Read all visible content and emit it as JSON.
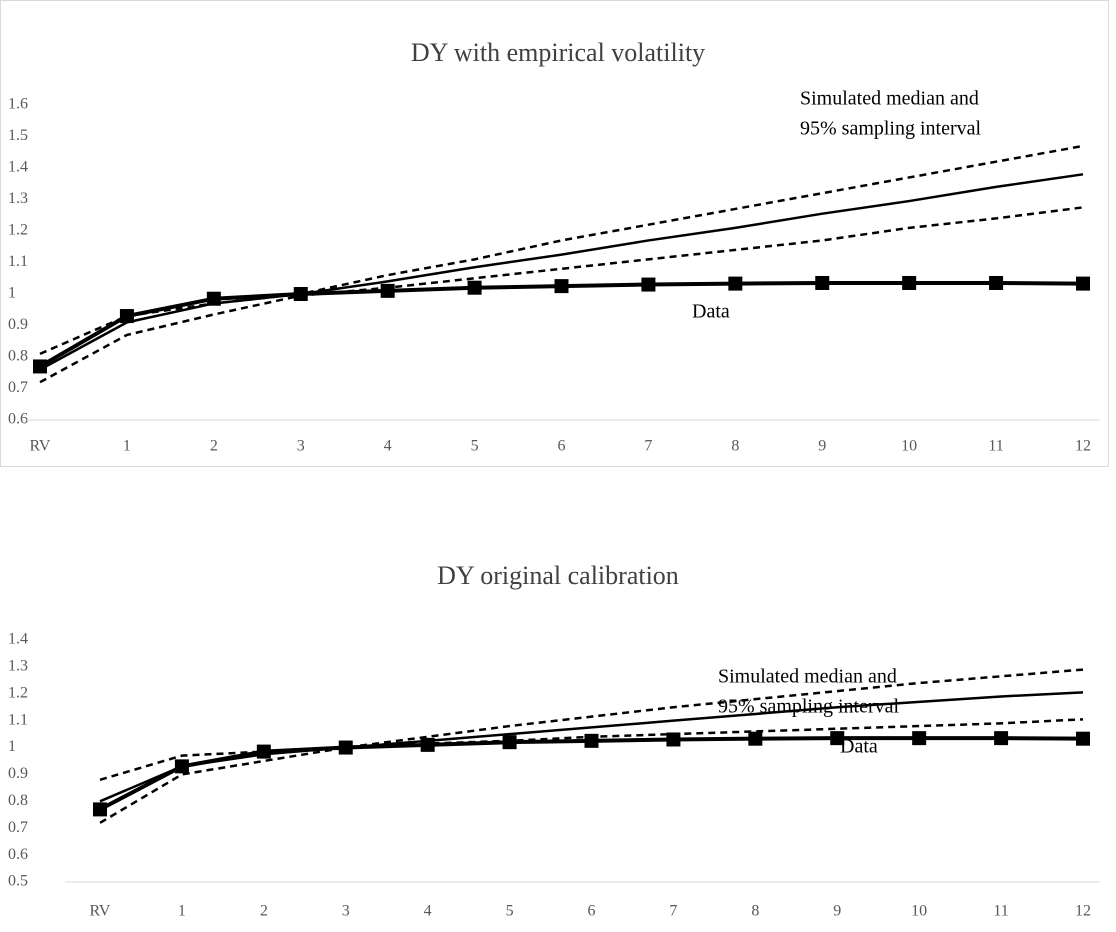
{
  "chart_data": [
    {
      "type": "line",
      "title": "DY with empirical volatility",
      "categories": [
        "RV",
        "1",
        "2",
        "3",
        "4",
        "5",
        "6",
        "7",
        "8",
        "9",
        "10",
        "11",
        "12"
      ],
      "ylim": [
        0.6,
        1.6
      ],
      "yticks": [
        0.6,
        0.7,
        0.8,
        0.9,
        1,
        1.1,
        1.2,
        1.3,
        1.4,
        1.5,
        1.6
      ],
      "annotations": [
        "Simulated median and",
        "95% sampling interval",
        "Data"
      ],
      "series": [
        {
          "color": "#000000",
          "line_style": "dashed",
          "values": [
            0.81,
            0.93,
            0.97,
            1.0,
            1.06,
            1.11,
            1.17,
            1.22,
            1.27,
            1.32,
            1.37,
            1.42,
            1.47
          ]
        },
        {
          "color": "#000000",
          "line_style": "solid",
          "values": [
            0.76,
            0.91,
            0.97,
            1.0,
            1.04,
            1.085,
            1.125,
            1.17,
            1.21,
            1.255,
            1.295,
            1.34,
            1.38
          ]
        },
        {
          "color": "#000000",
          "line_style": "dashed",
          "values": [
            0.72,
            0.87,
            0.935,
            0.995,
            1.02,
            1.05,
            1.08,
            1.11,
            1.14,
            1.17,
            1.21,
            1.24,
            1.275
          ]
        },
        {
          "color": "#000000",
          "line_style": "solid",
          "marker": "square",
          "values": [
            0.77,
            0.93,
            0.985,
            1.0,
            1.01,
            1.02,
            1.025,
            1.03,
            1.033,
            1.035,
            1.035,
            1.035,
            1.033
          ]
        }
      ]
    },
    {
      "type": "line",
      "title": "DY original calibration",
      "categories": [
        "RV",
        "1",
        "2",
        "3",
        "4",
        "5",
        "6",
        "7",
        "8",
        "9",
        "10",
        "11",
        "12"
      ],
      "ylim": [
        0.5,
        1.4
      ],
      "yticks": [
        0.5,
        0.6,
        0.7,
        0.8,
        0.9,
        1,
        1.1,
        1.2,
        1.3,
        1.4
      ],
      "annotations": [
        "Simulated median and",
        "95% sampling interval",
        "Data"
      ],
      "series": [
        {
          "color": "#000000",
          "line_style": "dashed",
          "values": [
            0.88,
            0.97,
            0.985,
            1.0,
            1.04,
            1.08,
            1.115,
            1.15,
            1.18,
            1.21,
            1.24,
            1.265,
            1.29
          ]
        },
        {
          "color": "#000000",
          "line_style": "solid",
          "values": [
            0.8,
            0.93,
            0.975,
            1.0,
            1.025,
            1.05,
            1.075,
            1.1,
            1.125,
            1.15,
            1.17,
            1.19,
            1.205
          ]
        },
        {
          "color": "#000000",
          "line_style": "dashed",
          "values": [
            0.72,
            0.9,
            0.95,
            1.0,
            1.015,
            1.025,
            1.04,
            1.05,
            1.06,
            1.07,
            1.08,
            1.09,
            1.105
          ]
        },
        {
          "color": "#000000",
          "line_style": "solid",
          "marker": "square",
          "values": [
            0.77,
            0.93,
            0.985,
            1.0,
            1.01,
            1.02,
            1.025,
            1.03,
            1.033,
            1.035,
            1.035,
            1.035,
            1.033
          ]
        }
      ]
    }
  ]
}
